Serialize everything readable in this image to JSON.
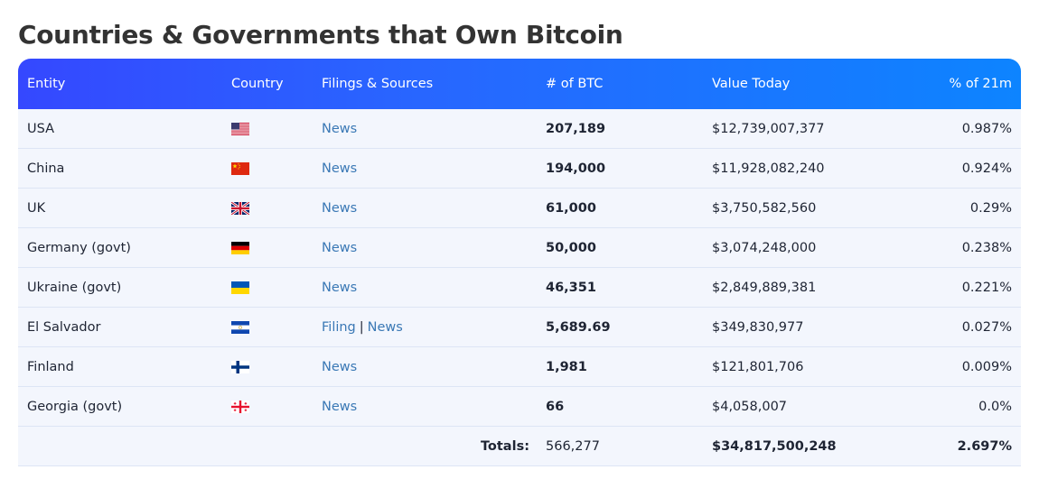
{
  "page": {
    "title": "Countries & Governments that Own Bitcoin"
  },
  "table": {
    "headers": {
      "entity": "Entity",
      "country": "Country",
      "filings": "Filings & Sources",
      "btc": "# of BTC",
      "value": "Value Today",
      "pct": "% of 21m"
    },
    "rows": [
      {
        "entity": "USA",
        "flag_icon": "us-flag-icon",
        "links": [
          "News"
        ],
        "btc": "207,189",
        "value": "$12,739,007,377",
        "pct": "0.987%"
      },
      {
        "entity": "China",
        "flag_icon": "china-flag-icon",
        "links": [
          "News"
        ],
        "btc": "194,000",
        "value": "$11,928,082,240",
        "pct": "0.924%"
      },
      {
        "entity": "UK",
        "flag_icon": "uk-flag-icon",
        "links": [
          "News"
        ],
        "btc": "61,000",
        "value": "$3,750,582,560",
        "pct": "0.29%"
      },
      {
        "entity": "Germany (govt)",
        "flag_icon": "germany-flag-icon",
        "links": [
          "News"
        ],
        "btc": "50,000",
        "value": "$3,074,248,000",
        "pct": "0.238%"
      },
      {
        "entity": "Ukraine (govt)",
        "flag_icon": "ukraine-flag-icon",
        "links": [
          "News"
        ],
        "btc": "46,351",
        "value": "$2,849,889,381",
        "pct": "0.221%"
      },
      {
        "entity": "El Salvador",
        "flag_icon": "el-salvador-flag-icon",
        "links": [
          "Filing",
          "News"
        ],
        "separator": "|",
        "btc": "5,689.69",
        "value": "$349,830,977",
        "pct": "0.027%"
      },
      {
        "entity": "Finland",
        "flag_icon": "finland-flag-icon",
        "links": [
          "News"
        ],
        "btc": "1,981",
        "value": "$121,801,706",
        "pct": "0.009%"
      },
      {
        "entity": "Georgia (govt)",
        "flag_icon": "georgia-flag-icon",
        "links": [
          "News"
        ],
        "btc": "66",
        "value": "$4,058,007",
        "pct": "0.0%"
      }
    ],
    "totals": {
      "label": "Totals:",
      "btc": "566,277",
      "value": "$34,817,500,248",
      "pct": "2.697%"
    }
  },
  "colors": {
    "header_gradient_start": "#3548ff",
    "header_gradient_end": "#0d84ff",
    "link": "#3a78b5",
    "row_bg": "#f3f6fd"
  }
}
